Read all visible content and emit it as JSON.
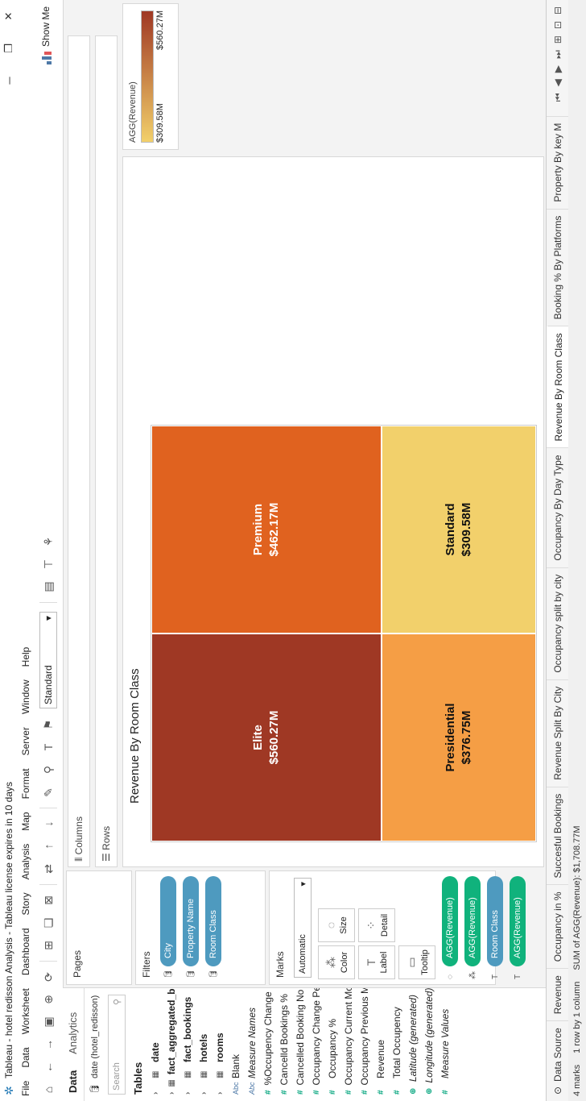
{
  "window": {
    "title": "Tableau - hotel redisson Analysis - Tableau license expires in 10 days"
  },
  "menu": [
    "File",
    "Data",
    "Worksheet",
    "Dashboard",
    "Story",
    "Analysis",
    "Map",
    "Format",
    "Server",
    "Window",
    "Help"
  ],
  "toolbar": {
    "fit": "Standard",
    "show_me": "Show Me"
  },
  "data_pane": {
    "tab_data": "Data",
    "tab_analytics": "Analytics",
    "datasource": "date (hotel_redisson)",
    "search_placeholder": "Search",
    "tables_header": "Tables",
    "tables": [
      "date",
      "fact_aggregated_bookings",
      "fact_bookings",
      "hotels",
      "rooms"
    ],
    "fields": [
      {
        "name": "Blank",
        "kind": "dim"
      },
      {
        "name": "Measure Names",
        "kind": "dim-ital"
      },
      {
        "name": "%Occupency Change Per ...",
        "kind": "measure"
      },
      {
        "name": "Cancelld Bookings %",
        "kind": "measure"
      },
      {
        "name": "Cancelled Booking  No",
        "kind": "measure"
      },
      {
        "name": "Occupancy Change Per M...",
        "kind": "measure"
      },
      {
        "name": "Occupancy %",
        "kind": "measure"
      },
      {
        "name": "Occupancy Current Month",
        "kind": "measure"
      },
      {
        "name": "Occupancy Previous Month",
        "kind": "measure"
      },
      {
        "name": "Revenue",
        "kind": "measure"
      },
      {
        "name": "Total Occupency",
        "kind": "measure"
      },
      {
        "name": "Latitude (generated)",
        "kind": "geo"
      },
      {
        "name": "Longitude (generated)",
        "kind": "geo"
      },
      {
        "name": "Measure Values",
        "kind": "measure-ital"
      }
    ]
  },
  "cards": {
    "pages": "Pages",
    "filters": "Filters",
    "filter_pills": [
      "City",
      "Property Name",
      "Room Class"
    ],
    "marks": "Marks",
    "mark_type": "Automatic",
    "mark_buttons": [
      "Color",
      "Size",
      "Label",
      "Detail",
      "Tooltip"
    ],
    "mark_pills": [
      {
        "label": "AGG(Revenue)",
        "kind": "mea",
        "icon": "size"
      },
      {
        "label": "AGG(Revenue)",
        "kind": "mea",
        "icon": "color"
      },
      {
        "label": "Room Class",
        "kind": "dim",
        "icon": "label"
      },
      {
        "label": "AGG(Revenue)",
        "kind": "mea",
        "icon": "label"
      }
    ]
  },
  "shelves": {
    "columns": "Columns",
    "rows": "Rows"
  },
  "view": {
    "title": "Revenue By Room Class"
  },
  "chart_data": {
    "type": "treemap",
    "title": "Revenue By Room Class",
    "categories": [
      "Elite",
      "Premium",
      "Presidential",
      "Standard"
    ],
    "values": [
      560.27,
      462.17,
      376.75,
      309.58
    ],
    "labels": [
      "$560.27M",
      "$462.17M",
      "$376.75M",
      "$309.58M"
    ],
    "colors": [
      "#9f3824",
      "#e0621f",
      "#f59e45",
      "#f2d06b"
    ],
    "text_colors": [
      "#ffffff",
      "#ffffff",
      "#111111",
      "#111111"
    ]
  },
  "legend": {
    "title": "AGG(Revenue)",
    "min": "$309.58M",
    "max": "$560.27M",
    "color_low": "#f2d06b",
    "color_high": "#9f3824"
  },
  "sheet_tabs": {
    "data_source": "Data Source",
    "tabs": [
      "Revenue",
      "Occupancy in %",
      "Succesful Bookings",
      "Revenue Split By City",
      "Occupancy split by city",
      "Occupancy By Day Type",
      "Revenue By Room Class",
      "Booking % By Platforms",
      "Property By key M"
    ],
    "active_index": 6
  },
  "status": {
    "marks": "4 marks",
    "dims": "1 row by 1 column",
    "sum": "SUM of AGG(Revenue): $1,708.77M"
  }
}
